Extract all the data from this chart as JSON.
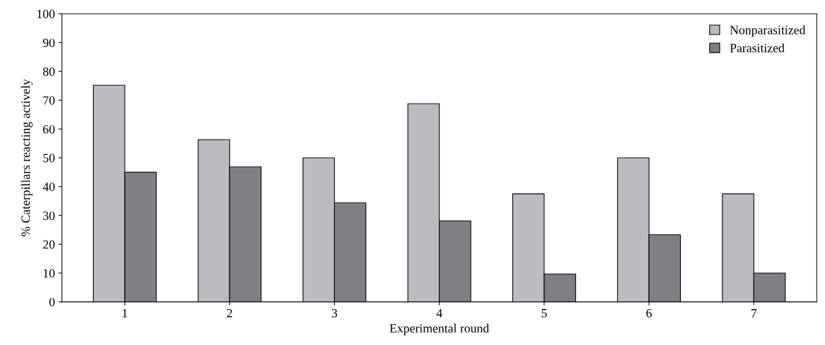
{
  "chart_data": {
    "type": "bar",
    "xlabel": "Experimental round",
    "ylabel": "% Caterpillars reacting actively",
    "categories": [
      "1",
      "2",
      "3",
      "4",
      "5",
      "6",
      "7"
    ],
    "series": [
      {
        "name": "Nonparasitized",
        "color": "#bcbcc0",
        "values": [
          75.2,
          56.3,
          50,
          68.8,
          37.5,
          50,
          37.5
        ]
      },
      {
        "name": "Parasitized",
        "color": "#808084",
        "values": [
          45,
          46.9,
          34.4,
          28.1,
          9.7,
          23.3,
          10
        ]
      }
    ],
    "ylim": [
      0,
      100
    ],
    "yticks": [
      0,
      10,
      20,
      30,
      40,
      50,
      60,
      70,
      80,
      90,
      100
    ],
    "grid": false,
    "legend": "top right"
  }
}
